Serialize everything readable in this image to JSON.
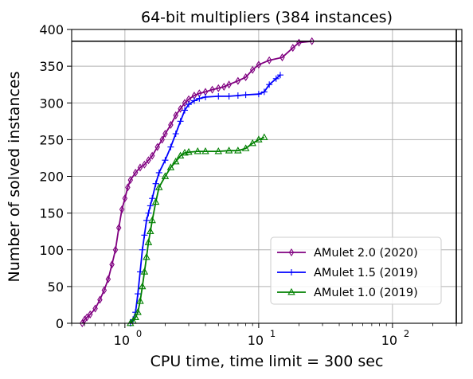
{
  "chart_data": {
    "type": "line",
    "title": "64-bit multipliers (384 instances)",
    "xlabel": "CPU time, time limit = 300 sec",
    "ylabel": "Number of solved instances",
    "xscale": "log",
    "xlim": [
      0.4,
      330
    ],
    "ylim": [
      0,
      400
    ],
    "x_ticks": [
      1,
      10,
      100
    ],
    "x_tick_labels": [
      {
        "base": "10",
        "exp": "0"
      },
      {
        "base": "10",
        "exp": "1"
      },
      {
        "base": "10",
        "exp": "2"
      }
    ],
    "y_ticks": [
      0,
      50,
      100,
      150,
      200,
      250,
      300,
      350,
      400
    ],
    "y_tick_labels": [
      "0",
      "50",
      "100",
      "150",
      "200",
      "250",
      "300",
      "350",
      "400"
    ],
    "grid": true,
    "legend_position": "lower-right",
    "reference_lines": [
      {
        "orientation": "horizontal",
        "value": 384,
        "color": "#000000"
      },
      {
        "orientation": "vertical",
        "value": 300,
        "color": "#000000"
      }
    ],
    "series": [
      {
        "name": "AMulet 2.0 (2020)",
        "color": "#800080",
        "marker": "diamond",
        "points": [
          [
            0.48,
            0
          ],
          [
            0.5,
            5
          ],
          [
            0.52,
            8
          ],
          [
            0.55,
            12
          ],
          [
            0.6,
            20
          ],
          [
            0.65,
            32
          ],
          [
            0.7,
            45
          ],
          [
            0.75,
            60
          ],
          [
            0.8,
            80
          ],
          [
            0.85,
            100
          ],
          [
            0.9,
            130
          ],
          [
            0.95,
            155
          ],
          [
            1.0,
            170
          ],
          [
            1.05,
            185
          ],
          [
            1.1,
            195
          ],
          [
            1.2,
            205
          ],
          [
            1.3,
            212
          ],
          [
            1.4,
            216
          ],
          [
            1.5,
            222
          ],
          [
            1.6,
            228
          ],
          [
            1.75,
            240
          ],
          [
            1.9,
            250
          ],
          [
            2.0,
            258
          ],
          [
            2.2,
            270
          ],
          [
            2.4,
            283
          ],
          [
            2.6,
            292
          ],
          [
            2.8,
            300
          ],
          [
            3.0,
            305
          ],
          [
            3.3,
            310
          ],
          [
            3.6,
            313
          ],
          [
            4.0,
            315
          ],
          [
            4.5,
            318
          ],
          [
            5.0,
            320
          ],
          [
            5.5,
            322
          ],
          [
            6.0,
            325
          ],
          [
            7.0,
            330
          ],
          [
            8.0,
            335
          ],
          [
            9.0,
            345
          ],
          [
            10.0,
            352
          ],
          [
            12.0,
            358
          ],
          [
            15.0,
            362
          ],
          [
            18.0,
            375
          ],
          [
            20.0,
            382
          ],
          [
            25.0,
            384
          ]
        ]
      },
      {
        "name": "AMulet 1.5 (2019)",
        "color": "#0000ff",
        "marker": "plus",
        "points": [
          [
            1.1,
            0
          ],
          [
            1.15,
            5
          ],
          [
            1.2,
            15
          ],
          [
            1.25,
            40
          ],
          [
            1.3,
            70
          ],
          [
            1.35,
            100
          ],
          [
            1.4,
            120
          ],
          [
            1.45,
            140
          ],
          [
            1.5,
            150
          ],
          [
            1.55,
            160
          ],
          [
            1.6,
            170
          ],
          [
            1.7,
            190
          ],
          [
            1.8,
            205
          ],
          [
            2.0,
            222
          ],
          [
            2.2,
            240
          ],
          [
            2.4,
            258
          ],
          [
            2.6,
            275
          ],
          [
            2.8,
            290
          ],
          [
            3.0,
            298
          ],
          [
            3.3,
            303
          ],
          [
            3.6,
            306
          ],
          [
            4.0,
            308
          ],
          [
            5.0,
            309
          ],
          [
            6.0,
            309
          ],
          [
            7.0,
            310
          ],
          [
            8.0,
            311
          ],
          [
            10.0,
            312
          ],
          [
            11.0,
            315
          ],
          [
            12.0,
            325
          ],
          [
            13.5,
            333
          ],
          [
            14.5,
            338
          ]
        ]
      },
      {
        "name": "AMulet 1.0 (2019)",
        "color": "#008000",
        "marker": "triangle",
        "points": [
          [
            1.1,
            0
          ],
          [
            1.15,
            3
          ],
          [
            1.2,
            8
          ],
          [
            1.25,
            15
          ],
          [
            1.3,
            30
          ],
          [
            1.35,
            50
          ],
          [
            1.4,
            70
          ],
          [
            1.45,
            90
          ],
          [
            1.5,
            110
          ],
          [
            1.55,
            125
          ],
          [
            1.6,
            140
          ],
          [
            1.7,
            165
          ],
          [
            1.8,
            185
          ],
          [
            2.0,
            200
          ],
          [
            2.2,
            212
          ],
          [
            2.4,
            220
          ],
          [
            2.6,
            228
          ],
          [
            2.8,
            232
          ],
          [
            3.0,
            233
          ],
          [
            3.5,
            234
          ],
          [
            4.0,
            234
          ],
          [
            5.0,
            234
          ],
          [
            6.0,
            235
          ],
          [
            7.0,
            235
          ],
          [
            8.0,
            238
          ],
          [
            9.0,
            245
          ],
          [
            10.0,
            250
          ],
          [
            11.0,
            253
          ]
        ]
      }
    ]
  }
}
